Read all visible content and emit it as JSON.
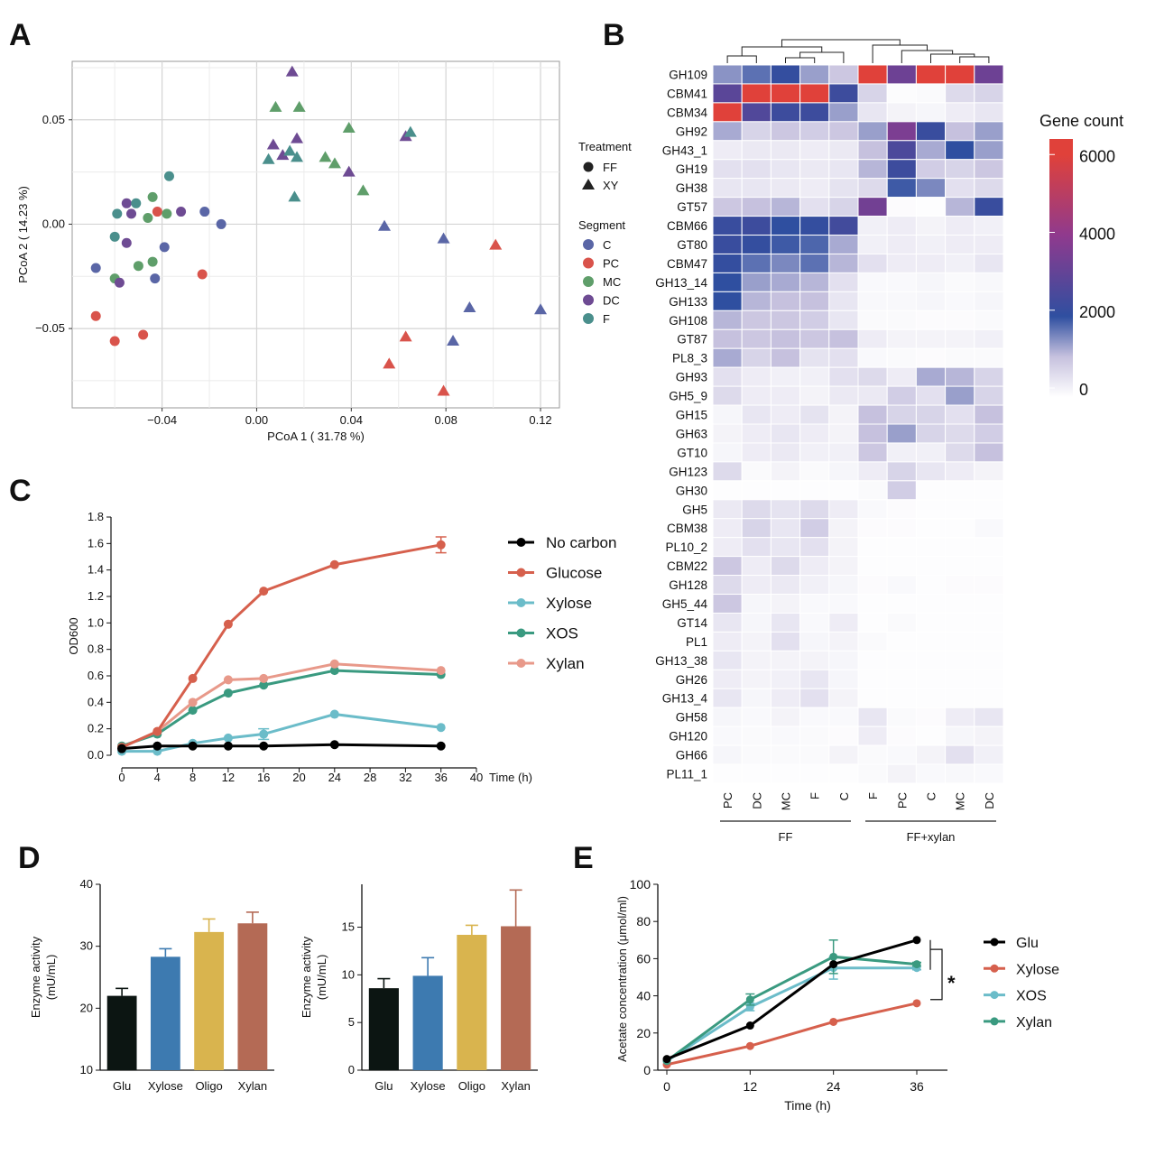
{
  "figure": {
    "panels": [
      "A",
      "B",
      "C",
      "D",
      "E"
    ]
  },
  "chart_data": [
    {
      "panel": "A",
      "type": "scatter",
      "xlabel": "PCoA 1 ( 31.78 %)",
      "ylabel": "PCoA 2 ( 14.23 %)",
      "xlim": [
        -0.078,
        0.128
      ],
      "ylim": [
        -0.088,
        0.078
      ],
      "xticks": [
        -0.04,
        0.0,
        0.04,
        0.08,
        0.12
      ],
      "xtick_labels": [
        "−0.04",
        "0.00",
        "0.04",
        "0.08",
        "0.12"
      ],
      "yticks": [
        -0.05,
        0.0,
        0.05
      ],
      "ytick_labels": [
        "−0.05",
        "0.00",
        "0.05"
      ],
      "grid": true,
      "legend": {
        "position": "right",
        "treatment_title": "Treatment",
        "treatments": [
          {
            "name": "FF",
            "shape": "circle"
          },
          {
            "name": "XY",
            "shape": "triangle"
          }
        ],
        "segment_title": "Segment",
        "segments": [
          {
            "name": "C",
            "color": "#5a66a6"
          },
          {
            "name": "PC",
            "color": "#d9534b"
          },
          {
            "name": "MC",
            "color": "#5f9e6a"
          },
          {
            "name": "DC",
            "color": "#6e4b93"
          },
          {
            "name": "F",
            "color": "#4a8f8c"
          }
        ]
      },
      "points": [
        {
          "x": -0.068,
          "y": -0.021,
          "s": "C",
          "t": "FF"
        },
        {
          "x": -0.022,
          "y": 0.006,
          "s": "C",
          "t": "FF"
        },
        {
          "x": -0.015,
          "y": 0.0,
          "s": "C",
          "t": "FF"
        },
        {
          "x": -0.039,
          "y": -0.011,
          "s": "C",
          "t": "FF"
        },
        {
          "x": -0.043,
          "y": -0.026,
          "s": "C",
          "t": "FF"
        },
        {
          "x": -0.068,
          "y": -0.044,
          "s": "PC",
          "t": "FF"
        },
        {
          "x": -0.06,
          "y": -0.056,
          "s": "PC",
          "t": "FF"
        },
        {
          "x": -0.048,
          "y": -0.053,
          "s": "PC",
          "t": "FF"
        },
        {
          "x": -0.023,
          "y": -0.024,
          "s": "PC",
          "t": "FF"
        },
        {
          "x": -0.042,
          "y": 0.006,
          "s": "PC",
          "t": "FF"
        },
        {
          "x": -0.06,
          "y": -0.026,
          "s": "MC",
          "t": "FF"
        },
        {
          "x": -0.05,
          "y": -0.02,
          "s": "MC",
          "t": "FF"
        },
        {
          "x": -0.044,
          "y": -0.018,
          "s": "MC",
          "t": "FF"
        },
        {
          "x": -0.046,
          "y": 0.003,
          "s": "MC",
          "t": "FF"
        },
        {
          "x": -0.038,
          "y": 0.005,
          "s": "MC",
          "t": "FF"
        },
        {
          "x": -0.044,
          "y": 0.013,
          "s": "MC",
          "t": "FF"
        },
        {
          "x": -0.058,
          "y": -0.028,
          "s": "DC",
          "t": "FF"
        },
        {
          "x": -0.055,
          "y": -0.009,
          "s": "DC",
          "t": "FF"
        },
        {
          "x": -0.055,
          "y": 0.01,
          "s": "DC",
          "t": "FF"
        },
        {
          "x": -0.032,
          "y": 0.006,
          "s": "DC",
          "t": "FF"
        },
        {
          "x": -0.053,
          "y": 0.005,
          "s": "DC",
          "t": "FF"
        },
        {
          "x": -0.059,
          "y": 0.005,
          "s": "F",
          "t": "FF"
        },
        {
          "x": -0.06,
          "y": -0.006,
          "s": "F",
          "t": "FF"
        },
        {
          "x": -0.051,
          "y": 0.01,
          "s": "F",
          "t": "FF"
        },
        {
          "x": -0.037,
          "y": 0.023,
          "s": "F",
          "t": "FF"
        },
        {
          "x": 0.054,
          "y": -0.001,
          "s": "C",
          "t": "XY"
        },
        {
          "x": 0.079,
          "y": -0.007,
          "s": "C",
          "t": "XY"
        },
        {
          "x": 0.09,
          "y": -0.04,
          "s": "C",
          "t": "XY"
        },
        {
          "x": 0.083,
          "y": -0.056,
          "s": "C",
          "t": "XY"
        },
        {
          "x": 0.12,
          "y": -0.041,
          "s": "C",
          "t": "XY"
        },
        {
          "x": 0.063,
          "y": -0.054,
          "s": "PC",
          "t": "XY"
        },
        {
          "x": 0.056,
          "y": -0.067,
          "s": "PC",
          "t": "XY"
        },
        {
          "x": 0.079,
          "y": -0.08,
          "s": "PC",
          "t": "XY"
        },
        {
          "x": 0.101,
          "y": -0.01,
          "s": "PC",
          "t": "XY"
        },
        {
          "x": 0.008,
          "y": 0.056,
          "s": "MC",
          "t": "XY"
        },
        {
          "x": 0.018,
          "y": 0.056,
          "s": "MC",
          "t": "XY"
        },
        {
          "x": 0.039,
          "y": 0.046,
          "s": "MC",
          "t": "XY"
        },
        {
          "x": 0.029,
          "y": 0.032,
          "s": "MC",
          "t": "XY"
        },
        {
          "x": 0.033,
          "y": 0.029,
          "s": "MC",
          "t": "XY"
        },
        {
          "x": 0.045,
          "y": 0.016,
          "s": "MC",
          "t": "XY"
        },
        {
          "x": 0.015,
          "y": 0.073,
          "s": "DC",
          "t": "XY"
        },
        {
          "x": 0.007,
          "y": 0.038,
          "s": "DC",
          "t": "XY"
        },
        {
          "x": 0.011,
          "y": 0.033,
          "s": "DC",
          "t": "XY"
        },
        {
          "x": 0.017,
          "y": 0.041,
          "s": "DC",
          "t": "XY"
        },
        {
          "x": 0.039,
          "y": 0.025,
          "s": "DC",
          "t": "XY"
        },
        {
          "x": 0.063,
          "y": 0.042,
          "s": "DC",
          "t": "XY"
        },
        {
          "x": 0.005,
          "y": 0.031,
          "s": "F",
          "t": "XY"
        },
        {
          "x": 0.014,
          "y": 0.035,
          "s": "F",
          "t": "XY"
        },
        {
          "x": 0.017,
          "y": 0.032,
          "s": "F",
          "t": "XY"
        },
        {
          "x": 0.016,
          "y": 0.013,
          "s": "F",
          "t": "XY"
        },
        {
          "x": 0.065,
          "y": 0.044,
          "s": "F",
          "t": "XY"
        }
      ]
    },
    {
      "panel": "B",
      "type": "heatmap",
      "legend_title": "Gene count",
      "colorbar_ticks": [
        6000,
        4000,
        2000,
        0
      ],
      "colorbar_range": [
        0,
        6400
      ],
      "colorscale": [
        "#ffffff",
        "#c6c1de",
        "#2f4fa0",
        "#8f3a8e",
        "#e0413a"
      ],
      "columns": [
        "PC",
        "DC",
        "MC",
        "F",
        "C",
        "F",
        "PC",
        "C",
        "MC",
        "DC"
      ],
      "groups": [
        {
          "name": "FF",
          "start": 0,
          "end": 4
        },
        {
          "name": "FF+xylan",
          "start": 5,
          "end": 9
        }
      ],
      "rows": [
        "GH109",
        "CBM41",
        "CBM34",
        "GH92",
        "GH43_1",
        "GH19",
        "GH38",
        "GT57",
        "CBM66",
        "GT80",
        "CBM47",
        "GH13_14",
        "GH133",
        "GH108",
        "GT87",
        "PL8_3",
        "GH93",
        "GH5_9",
        "GH15",
        "GH63",
        "GT10",
        "GH123",
        "GH30",
        "GH5",
        "CBM38",
        "PL10_2",
        "CBM22",
        "GH128",
        "GH5_44",
        "GT14",
        "PL1",
        "GH13_38",
        "GH26",
        "GH13_4",
        "GH58",
        "GH120",
        "GH66",
        "PL11_1"
      ],
      "values": [
        [
          1400,
          1700,
          2100,
          1300,
          900,
          6200,
          3300,
          6200,
          6200,
          3300
        ],
        [
          2900,
          6200,
          6200,
          6200,
          2300,
          700,
          50,
          80,
          600,
          700
        ],
        [
          6000,
          2700,
          2300,
          2300,
          1300,
          400,
          200,
          150,
          300,
          400
        ],
        [
          1200,
          700,
          900,
          800,
          900,
          1300,
          3600,
          2200,
          1000,
          1300
        ],
        [
          300,
          350,
          350,
          300,
          350,
          1000,
          2600,
          1200,
          2000,
          1300
        ],
        [
          500,
          500,
          400,
          350,
          400,
          1100,
          2300,
          800,
          700,
          900
        ],
        [
          400,
          400,
          350,
          300,
          450,
          600,
          1900,
          1500,
          500,
          600
        ],
        [
          900,
          1000,
          1100,
          500,
          700,
          3400,
          60,
          40,
          1100,
          2200
        ],
        [
          2200,
          2300,
          2000,
          2100,
          2400,
          250,
          300,
          200,
          300,
          250
        ],
        [
          2200,
          2100,
          1900,
          1800,
          1200,
          250,
          300,
          250,
          300,
          300
        ],
        [
          2100,
          1700,
          1500,
          1700,
          1100,
          500,
          300,
          300,
          250,
          400
        ],
        [
          2000,
          1300,
          1200,
          1100,
          500,
          100,
          100,
          150,
          80,
          120
        ],
        [
          2000,
          1100,
          1000,
          1000,
          400,
          120,
          120,
          150,
          100,
          150
        ],
        [
          1100,
          900,
          900,
          800,
          400,
          80,
          80,
          60,
          60,
          80
        ],
        [
          1000,
          900,
          1000,
          900,
          1000,
          300,
          200,
          200,
          200,
          250
        ],
        [
          1200,
          700,
          1000,
          450,
          500,
          100,
          80,
          60,
          80,
          80
        ],
        [
          500,
          300,
          250,
          250,
          500,
          600,
          300,
          1200,
          1100,
          700
        ],
        [
          600,
          300,
          300,
          200,
          350,
          350,
          800,
          500,
          1300,
          700
        ],
        [
          150,
          400,
          300,
          450,
          200,
          1000,
          700,
          700,
          500,
          1000
        ],
        [
          200,
          300,
          400,
          300,
          200,
          1000,
          1300,
          700,
          600,
          800
        ],
        [
          150,
          300,
          350,
          250,
          250,
          900,
          250,
          250,
          600,
          1000
        ],
        [
          600,
          80,
          200,
          80,
          150,
          300,
          700,
          400,
          300,
          200
        ],
        [
          40,
          40,
          40,
          40,
          40,
          80,
          800,
          40,
          40,
          40
        ],
        [
          350,
          600,
          450,
          600,
          300,
          100,
          60,
          40,
          40,
          40
        ],
        [
          300,
          700,
          400,
          800,
          200,
          60,
          60,
          40,
          40,
          100
        ],
        [
          300,
          500,
          400,
          500,
          200,
          40,
          40,
          40,
          40,
          40
        ],
        [
          900,
          300,
          600,
          300,
          200,
          40,
          40,
          40,
          40,
          40
        ],
        [
          600,
          300,
          350,
          250,
          150,
          60,
          100,
          40,
          60,
          60
        ],
        [
          900,
          150,
          200,
          100,
          100,
          40,
          40,
          40,
          40,
          40
        ],
        [
          400,
          150,
          400,
          100,
          300,
          40,
          80,
          40,
          40,
          40
        ],
        [
          300,
          200,
          500,
          150,
          200,
          80,
          40,
          40,
          40,
          40
        ],
        [
          400,
          200,
          200,
          200,
          150,
          40,
          40,
          40,
          40,
          40
        ],
        [
          300,
          200,
          250,
          400,
          150,
          40,
          40,
          40,
          40,
          40
        ],
        [
          400,
          150,
          300,
          500,
          200,
          40,
          40,
          40,
          40,
          40
        ],
        [
          150,
          100,
          200,
          100,
          100,
          400,
          80,
          60,
          300,
          400
        ],
        [
          100,
          80,
          100,
          80,
          60,
          300,
          60,
          40,
          150,
          200
        ],
        [
          150,
          80,
          80,
          80,
          200,
          80,
          100,
          200,
          500,
          250
        ],
        [
          40,
          40,
          40,
          40,
          40,
          80,
          200,
          100,
          120,
          100
        ]
      ]
    },
    {
      "panel": "C",
      "type": "line",
      "ylabel": "OD600",
      "xlabel": "Time (h)",
      "xlim": [
        0,
        40
      ],
      "ylim": [
        0,
        1.8
      ],
      "xticks": [
        0,
        4,
        8,
        12,
        16,
        20,
        24,
        28,
        32,
        36,
        40
      ],
      "yticks": [
        0.0,
        0.2,
        0.4,
        0.6,
        0.8,
        1.0,
        1.2,
        1.4,
        1.6,
        1.8
      ],
      "ytick_labels": [
        "0.0",
        "0.2",
        "0.4",
        "0.6",
        "0.8",
        "1.0",
        "1.2",
        "1.4",
        "1.6",
        "1.8"
      ],
      "legend_position": "right",
      "x": [
        0,
        4,
        8,
        12,
        16,
        24,
        36
      ],
      "series": [
        {
          "name": "No carbon",
          "color": "#000000",
          "values": [
            0.05,
            0.07,
            0.07,
            0.07,
            0.07,
            0.08,
            0.07
          ]
        },
        {
          "name": "Glucose",
          "color": "#d6604d",
          "values": [
            0.06,
            0.18,
            0.58,
            0.99,
            1.24,
            1.44,
            1.59
          ],
          "errors": [
            0,
            0,
            0,
            0,
            0,
            0,
            0.06
          ]
        },
        {
          "name": "Xylose",
          "color": "#6bbcc9",
          "values": [
            0.03,
            0.03,
            0.09,
            0.13,
            0.16,
            0.31,
            0.21
          ],
          "errors": [
            0,
            0,
            0,
            0,
            0.04,
            0,
            0
          ]
        },
        {
          "name": "XOS",
          "color": "#3a9a80",
          "values": [
            0.07,
            0.16,
            0.34,
            0.47,
            0.53,
            0.64,
            0.61
          ]
        },
        {
          "name": "Xylan",
          "color": "#e8998a",
          "values": [
            0.06,
            0.18,
            0.4,
            0.57,
            0.58,
            0.69,
            0.64
          ]
        }
      ]
    },
    {
      "panel": "D-left",
      "type": "bar",
      "ylabel": "Enzyme activity\n(mU/mL)",
      "categories": [
        "Glu",
        "Xylose",
        "Oligo",
        "Xylan"
      ],
      "colors": [
        "#0c1512",
        "#3d7ab0",
        "#d9b44e",
        "#b46a55"
      ],
      "values": [
        22.0,
        28.3,
        32.3,
        33.7
      ],
      "errors": [
        1.2,
        1.3,
        2.1,
        1.8
      ],
      "ylim": [
        10,
        40
      ],
      "yticks": [
        10,
        20,
        30,
        40
      ]
    },
    {
      "panel": "D-right",
      "type": "bar",
      "ylabel": "Enzyme activity\n(mU/mL)",
      "categories": [
        "Glu",
        "Xylose",
        "Oligo",
        "Xylan"
      ],
      "colors": [
        "#0c1512",
        "#3d7ab0",
        "#d9b44e",
        "#b46a55"
      ],
      "values": [
        8.6,
        9.9,
        14.2,
        15.1
      ],
      "errors": [
        1.0,
        1.9,
        1.0,
        3.8
      ],
      "ylim": [
        0,
        19.5
      ],
      "yticks": [
        0,
        5,
        10,
        15
      ]
    },
    {
      "panel": "E",
      "type": "line",
      "ylabel": "Acetate concentration (μmol/ml)",
      "xlabel": "Time (h)",
      "xlim": [
        0,
        40
      ],
      "ylim": [
        0,
        100
      ],
      "xticks": [
        0,
        12,
        24,
        36
      ],
      "yticks": [
        0,
        20,
        40,
        60,
        80,
        100
      ],
      "x": [
        0,
        12,
        24,
        36
      ],
      "legend_position": "right",
      "annotation": "*",
      "series": [
        {
          "name": "Glu",
          "color": "#000000",
          "values": [
            6,
            24,
            57,
            70
          ]
        },
        {
          "name": "Xylose",
          "color": "#d6604d",
          "values": [
            3,
            13,
            26,
            36
          ]
        },
        {
          "name": "XOS",
          "color": "#6bbcc9",
          "values": [
            5,
            34,
            55,
            55
          ],
          "errors": [
            0,
            2,
            6,
            1
          ]
        },
        {
          "name": "Xylan",
          "color": "#3a9a80",
          "values": [
            5,
            38,
            61,
            57
          ],
          "errors": [
            0,
            3,
            9,
            1
          ]
        }
      ]
    }
  ]
}
